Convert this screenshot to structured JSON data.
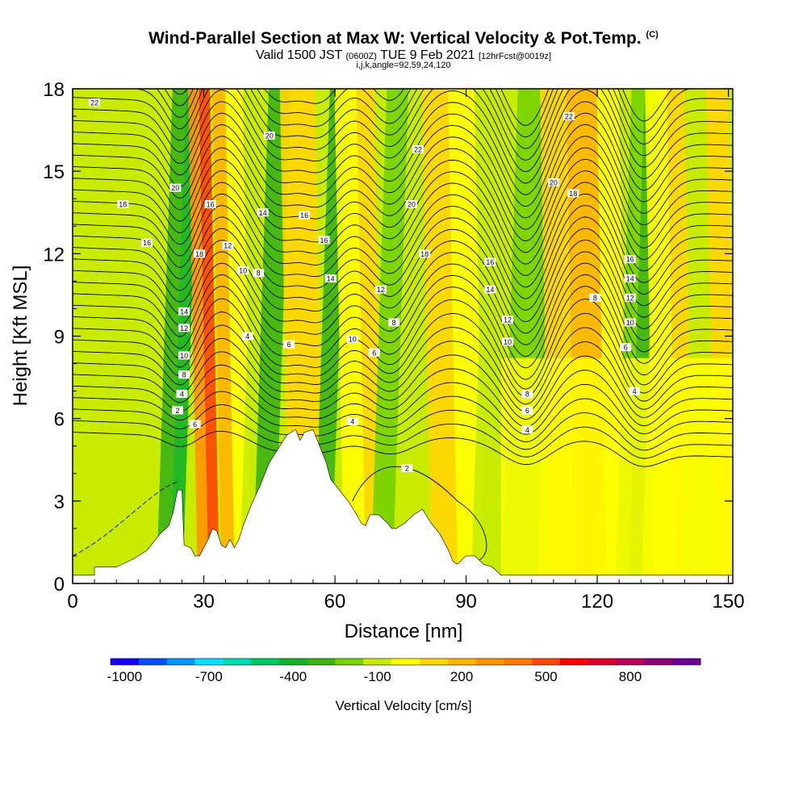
{
  "header": {
    "title": "Wind-Parallel Section at Max W: Vertical Velocity & Pot.Temp.",
    "copyright": "(C)",
    "valid_prefix": "Valid 1500 JST",
    "valid_utc": "(0600Z)",
    "valid_date": "TUE 9 Feb 2021",
    "forecast": "[12hrFcst@0019z]",
    "grid_info": "i,j,k,angle=92,59,24,120"
  },
  "chart_data": {
    "type": "heatmap",
    "title": "Wind-Parallel Section at Max W: Vertical Velocity & Pot.Temp.",
    "xlabel": "Distance [nm]",
    "ylabel": "Height [Kft MSL]",
    "xlim": [
      0,
      151
    ],
    "ylim": [
      0,
      18
    ],
    "x_ticks": [
      "0",
      "30",
      "60",
      "90",
      "120",
      "150"
    ],
    "y_ticks": [
      "0",
      "3",
      "6",
      "9",
      "12",
      "15",
      "18"
    ],
    "colorbar": {
      "label": "Vertical Velocity [cm/s]",
      "tick_labels": [
        "-1000",
        "-700",
        "-400",
        "-100",
        "200",
        "500",
        "800"
      ],
      "colors": [
        "#1400ff",
        "#0050ff",
        "#0096ff",
        "#00e1ff",
        "#00dcb4",
        "#00c864",
        "#14b428",
        "#3cb414",
        "#78d200",
        "#c8eb00",
        "#ffff00",
        "#ffd700",
        "#ffb400",
        "#ff9600",
        "#ff7800",
        "#ff4600",
        "#ff0000",
        "#dc0028",
        "#b4005a",
        "#8c0078",
        "#6e0096"
      ]
    },
    "terrain_kft": [
      [
        0,
        0.3
      ],
      [
        5,
        0.3
      ],
      [
        5,
        0.6
      ],
      [
        10,
        0.6
      ],
      [
        14,
        0.9
      ],
      [
        17,
        1.2
      ],
      [
        20,
        1.8
      ],
      [
        22,
        2.1
      ],
      [
        23,
        2.6
      ],
      [
        24,
        3.4
      ],
      [
        25,
        3.4
      ],
      [
        25.5,
        1.4
      ],
      [
        27,
        1.3
      ],
      [
        28,
        1.0
      ],
      [
        29,
        1.0
      ],
      [
        30,
        1.3
      ],
      [
        31,
        1.6
      ],
      [
        32,
        2.0
      ],
      [
        33,
        1.9
      ],
      [
        34,
        1.4
      ],
      [
        35,
        1.3
      ],
      [
        36,
        1.6
      ],
      [
        37,
        1.3
      ],
      [
        38,
        1.6
      ],
      [
        39,
        2.1
      ],
      [
        41,
        2.9
      ],
      [
        43,
        3.6
      ],
      [
        45,
        4.4
      ],
      [
        47,
        4.9
      ],
      [
        49,
        5.4
      ],
      [
        51,
        5.6
      ],
      [
        52,
        5.2
      ],
      [
        53,
        5.5
      ],
      [
        55,
        5.6
      ],
      [
        56,
        5.2
      ],
      [
        57,
        4.8
      ],
      [
        58,
        4.4
      ],
      [
        59,
        3.8
      ],
      [
        61,
        3.4
      ],
      [
        63,
        3.0
      ],
      [
        65,
        2.5
      ],
      [
        66,
        2.2
      ],
      [
        67,
        2.1
      ],
      [
        68,
        2.5
      ],
      [
        70,
        2.5
      ],
      [
        72,
        2.2
      ],
      [
        73,
        2.0
      ],
      [
        74,
        2.0
      ],
      [
        76,
        2.2
      ],
      [
        78,
        2.5
      ],
      [
        80,
        2.7
      ],
      [
        82,
        2.2
      ],
      [
        84,
        1.8
      ],
      [
        86,
        1.2
      ],
      [
        87,
        0.8
      ],
      [
        88,
        0.7
      ],
      [
        90,
        1.0
      ],
      [
        92,
        1.0
      ],
      [
        94,
        0.7
      ],
      [
        96,
        0.6
      ],
      [
        98,
        0.3
      ],
      [
        151,
        0.3
      ]
    ],
    "velocity_bands": [
      {
        "x": 0,
        "w": 10,
        "value": -80
      },
      {
        "x": 10,
        "w": 11,
        "value": -60
      },
      {
        "x": 21,
        "w": 3,
        "value": -250
      },
      {
        "x": 24,
        "w": 3,
        "value": -380
      },
      {
        "x": 27.5,
        "w": 3,
        "value": 350
      },
      {
        "x": 30,
        "w": 2.5,
        "value": 500
      },
      {
        "x": 33,
        "w": 3,
        "value": 200
      },
      {
        "x": 36,
        "w": 4,
        "value": 0
      },
      {
        "x": 40,
        "w": 3,
        "value": -80
      },
      {
        "x": 43,
        "w": 5,
        "value": -300
      },
      {
        "x": 48.5,
        "w": 4,
        "value": 100
      },
      {
        "x": 52.5,
        "w": 4,
        "value": 180
      },
      {
        "x": 57,
        "w": 4,
        "value": -250
      },
      {
        "x": 61,
        "w": 5,
        "value": 50
      },
      {
        "x": 66,
        "w": 4,
        "value": 170
      },
      {
        "x": 70,
        "w": 5,
        "value": -150
      },
      {
        "x": 75,
        "w": 6,
        "value": -60
      },
      {
        "x": 81,
        "w": 6,
        "value": 170
      },
      {
        "x": 87,
        "w": 6,
        "value": 30
      },
      {
        "x": 93,
        "w": 7,
        "value": -60
      },
      {
        "x": 100,
        "w": 4,
        "value": -120
      },
      {
        "x": 104,
        "w": 4,
        "value": -200
      },
      {
        "x": 108,
        "w": 6,
        "value": 150
      },
      {
        "x": 114,
        "w": 7,
        "value": 200
      },
      {
        "x": 121,
        "w": 5,
        "value": 30
      },
      {
        "x": 126,
        "w": 3,
        "value": -180
      },
      {
        "x": 129,
        "w": 3,
        "value": -250
      },
      {
        "x": 132,
        "w": 5,
        "value": 50
      },
      {
        "x": 137,
        "w": 4,
        "value": 170
      },
      {
        "x": 141,
        "w": 5,
        "value": -60
      },
      {
        "x": 146,
        "w": 5,
        "value": 120
      }
    ],
    "theta_contour_labels": [
      {
        "x": 5,
        "y": 17.5,
        "text": "22"
      },
      {
        "x": 11.5,
        "y": 13.8,
        "text": "18"
      },
      {
        "x": 17,
        "y": 12.4,
        "text": "16"
      },
      {
        "x": 23.5,
        "y": 14.4,
        "text": "20"
      },
      {
        "x": 31.5,
        "y": 13.8,
        "text": "16"
      },
      {
        "x": 29,
        "y": 12.0,
        "text": "18"
      },
      {
        "x": 35.5,
        "y": 12.3,
        "text": "12"
      },
      {
        "x": 39,
        "y": 11.4,
        "text": "10"
      },
      {
        "x": 42.5,
        "y": 11.3,
        "text": "8"
      },
      {
        "x": 40,
        "y": 9.0,
        "text": "4"
      },
      {
        "x": 25.5,
        "y": 9.9,
        "text": "14"
      },
      {
        "x": 25.5,
        "y": 9.3,
        "text": "12"
      },
      {
        "x": 25.5,
        "y": 8.3,
        "text": "10"
      },
      {
        "x": 25.5,
        "y": 7.6,
        "text": "8"
      },
      {
        "x": 25,
        "y": 6.9,
        "text": "4"
      },
      {
        "x": 24,
        "y": 6.3,
        "text": "2"
      },
      {
        "x": 28,
        "y": 5.8,
        "text": "6"
      },
      {
        "x": 45,
        "y": 16.3,
        "text": "20"
      },
      {
        "x": 43.5,
        "y": 13.5,
        "text": "14"
      },
      {
        "x": 53,
        "y": 13.4,
        "text": "16"
      },
      {
        "x": 57.5,
        "y": 12.5,
        "text": "16"
      },
      {
        "x": 59,
        "y": 11.1,
        "text": "14"
      },
      {
        "x": 49.5,
        "y": 8.7,
        "text": "6"
      },
      {
        "x": 64,
        "y": 8.9,
        "text": "10"
      },
      {
        "x": 64,
        "y": 5.9,
        "text": "4"
      },
      {
        "x": 79,
        "y": 15.8,
        "text": "22"
      },
      {
        "x": 77.5,
        "y": 13.8,
        "text": "20"
      },
      {
        "x": 80.5,
        "y": 12.0,
        "text": "18"
      },
      {
        "x": 70.5,
        "y": 10.7,
        "text": "12"
      },
      {
        "x": 73.5,
        "y": 9.5,
        "text": "8"
      },
      {
        "x": 69,
        "y": 8.4,
        "text": "6"
      },
      {
        "x": 76.5,
        "y": 4.2,
        "text": "2"
      },
      {
        "x": 113.5,
        "y": 17.0,
        "text": "22"
      },
      {
        "x": 110,
        "y": 14.6,
        "text": "20"
      },
      {
        "x": 114.5,
        "y": 14.2,
        "text": "18"
      },
      {
        "x": 95.5,
        "y": 11.7,
        "text": "16"
      },
      {
        "x": 95.5,
        "y": 10.7,
        "text": "14"
      },
      {
        "x": 99.5,
        "y": 9.6,
        "text": "12"
      },
      {
        "x": 99.5,
        "y": 8.8,
        "text": "10"
      },
      {
        "x": 104,
        "y": 6.9,
        "text": "8"
      },
      {
        "x": 104,
        "y": 6.3,
        "text": "6"
      },
      {
        "x": 104,
        "y": 5.6,
        "text": "4"
      },
      {
        "x": 119.5,
        "y": 10.4,
        "text": "8"
      },
      {
        "x": 127.5,
        "y": 11.8,
        "text": "16"
      },
      {
        "x": 127.5,
        "y": 11.1,
        "text": "14"
      },
      {
        "x": 127.5,
        "y": 10.4,
        "text": "12"
      },
      {
        "x": 127.5,
        "y": 9.5,
        "text": "10"
      },
      {
        "x": 126.5,
        "y": 8.6,
        "text": "6"
      },
      {
        "x": 128.5,
        "y": 7.0,
        "text": "4"
      }
    ]
  }
}
